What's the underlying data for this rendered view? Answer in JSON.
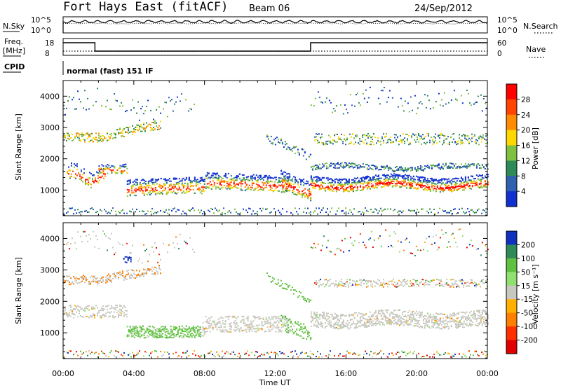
{
  "header": {
    "station": "Fort Hays East (fitACF)",
    "beam": "Beam 06",
    "date": "24/Sep/2012"
  },
  "panels": {
    "noise": {
      "left_label": "N.Sky",
      "right_label": "N.Search",
      "left_ticks": [
        "10^5",
        "10^0"
      ],
      "right_ticks": [
        "10^5",
        "10^0"
      ]
    },
    "freq": {
      "left_label_1": "Freq.",
      "left_label_2": "[MHz]",
      "right_label": "Nave",
      "left_ticks": [
        "18",
        "8"
      ],
      "right_ticks": [
        "60",
        "0"
      ],
      "freq_switch_times_hr": [
        1.8,
        14.0
      ],
      "freq_levels_mhz": [
        17,
        11
      ]
    },
    "cpid": {
      "label": "CPID",
      "mode_text": "normal (fast) 151 IF"
    }
  },
  "chart_data": [
    {
      "type": "heatmap",
      "name": "power",
      "ylabel": "Slant Range [km]",
      "xlabel": "Time UT",
      "xlim_hr": [
        0,
        24
      ],
      "ylim_km": [
        180,
        4500
      ],
      "x_ticks": [
        "00:00",
        "04:00",
        "08:00",
        "12:00",
        "16:00",
        "20:00",
        "00:00"
      ],
      "y_ticks": [
        1000,
        2000,
        3000,
        4000
      ],
      "colorbar": {
        "label": "Power [dB]",
        "ticks": [
          "28",
          "24",
          "20",
          "16",
          "12",
          "8",
          "4"
        ],
        "colors": [
          "#ff0000",
          "#ff4500",
          "#ff8c00",
          "#ffd700",
          "#80c040",
          "#2e8b57",
          "#3060b0",
          "#1030d0"
        ]
      }
    },
    {
      "type": "heatmap",
      "name": "velocity",
      "ylabel": "Slant Range [km]",
      "xlabel": "Time UT",
      "xlim_hr": [
        0,
        24
      ],
      "ylim_km": [
        180,
        4500
      ],
      "x_ticks": [
        "00:00",
        "04:00",
        "08:00",
        "12:00",
        "16:00",
        "20:00",
        "00:00"
      ],
      "y_ticks": [
        1000,
        2000,
        3000,
        4000
      ],
      "colorbar": {
        "label": "Velocity [m s⁻¹]",
        "ticks": [
          "200",
          "100",
          "50",
          "15",
          "-15",
          "-50",
          "-100",
          "-200"
        ],
        "colors": [
          "#1030c0",
          "#2e8b57",
          "#60c040",
          "#90e070",
          "#c8c8c0",
          "#ffb000",
          "#ff8000",
          "#ff3000",
          "#e00000"
        ]
      }
    }
  ],
  "footer": {
    "xlabel": "Time UT"
  }
}
